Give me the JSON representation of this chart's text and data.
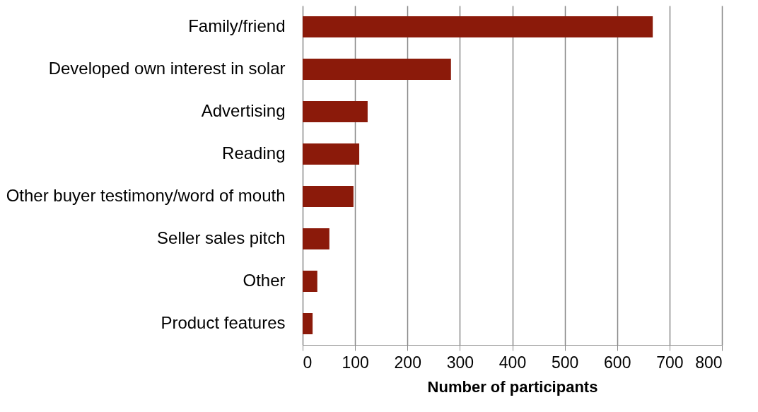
{
  "chart_data": {
    "type": "bar",
    "orientation": "horizontal",
    "xlabel": "Number of participants",
    "categories": [
      "Family/friend",
      "Developed own interest in solar",
      "Advertising",
      "Reading",
      "Other buyer testimony/word of mouth",
      "Seller sales pitch",
      "Other",
      "Product features"
    ],
    "values": [
      668,
      283,
      124,
      108,
      97,
      51,
      28,
      19
    ],
    "color": "#8b1a0a",
    "xlim": [
      0,
      800
    ],
    "xticks": [
      0,
      100,
      200,
      300,
      400,
      500,
      600,
      700,
      800
    ],
    "grid": "x"
  }
}
